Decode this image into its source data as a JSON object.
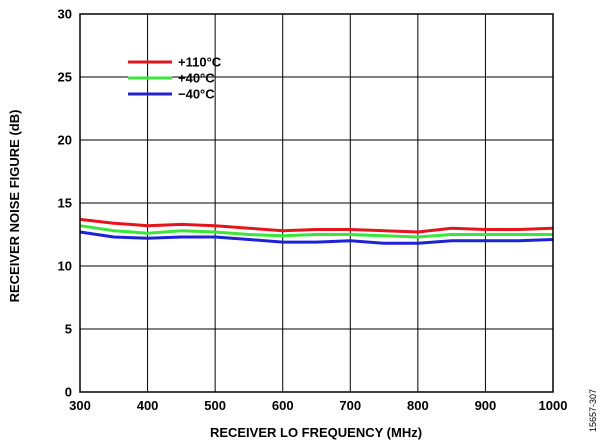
{
  "chart_data": {
    "type": "line",
    "xlabel": "RECEIVER LO FREQUENCY (MHz)",
    "ylabel": "RECEIVER NOISE FIGURE (dB)",
    "xlim": [
      300,
      1000
    ],
    "ylim": [
      0,
      30
    ],
    "x_ticks": [
      300,
      400,
      500,
      600,
      700,
      800,
      900,
      1000
    ],
    "y_ticks": [
      0,
      5,
      10,
      15,
      20,
      25,
      30
    ],
    "grid": true,
    "legend_position": "top-left",
    "series": [
      {
        "name": "+110°C",
        "color": "#e8141c",
        "x": [
          300,
          350,
          400,
          450,
          500,
          550,
          600,
          650,
          700,
          750,
          800,
          850,
          900,
          950,
          1000
        ],
        "y": [
          13.7,
          13.4,
          13.2,
          13.3,
          13.2,
          13.0,
          12.8,
          12.9,
          12.9,
          12.8,
          12.7,
          13.0,
          12.9,
          12.9,
          13.0
        ]
      },
      {
        "name": "+40°C",
        "color": "#39e639",
        "x": [
          300,
          350,
          400,
          450,
          500,
          550,
          600,
          650,
          700,
          750,
          800,
          850,
          900,
          950,
          1000
        ],
        "y": [
          13.2,
          12.8,
          12.6,
          12.8,
          12.7,
          12.5,
          12.4,
          12.5,
          12.5,
          12.4,
          12.3,
          12.5,
          12.5,
          12.5,
          12.5
        ]
      },
      {
        "name": "−40°C",
        "color": "#1e22d6",
        "x": [
          300,
          350,
          400,
          450,
          500,
          550,
          600,
          650,
          700,
          750,
          800,
          850,
          900,
          950,
          1000
        ],
        "y": [
          12.7,
          12.3,
          12.2,
          12.3,
          12.3,
          12.1,
          11.9,
          11.9,
          12.0,
          11.8,
          11.8,
          12.0,
          12.0,
          12.0,
          12.1
        ]
      }
    ],
    "figure_id": "15657-307"
  }
}
